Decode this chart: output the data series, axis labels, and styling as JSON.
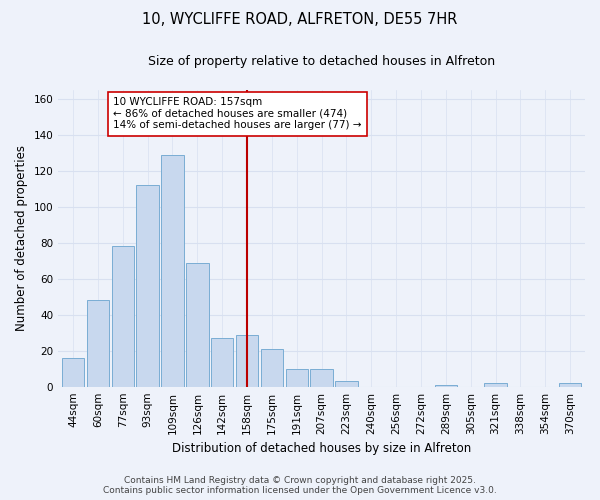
{
  "title": "10, WYCLIFFE ROAD, ALFRETON, DE55 7HR",
  "subtitle": "Size of property relative to detached houses in Alfreton",
  "xlabel": "Distribution of detached houses by size in Alfreton",
  "ylabel": "Number of detached properties",
  "bar_labels": [
    "44sqm",
    "60sqm",
    "77sqm",
    "93sqm",
    "109sqm",
    "126sqm",
    "142sqm",
    "158sqm",
    "175sqm",
    "191sqm",
    "207sqm",
    "223sqm",
    "240sqm",
    "256sqm",
    "272sqm",
    "289sqm",
    "305sqm",
    "321sqm",
    "338sqm",
    "354sqm",
    "370sqm"
  ],
  "bar_heights": [
    16,
    48,
    78,
    112,
    129,
    69,
    27,
    29,
    21,
    10,
    10,
    3,
    0,
    0,
    0,
    1,
    0,
    2,
    0,
    0,
    2
  ],
  "bar_color": "#c8d8ee",
  "bar_edge_color": "#7aadd4",
  "vline_x_index": 7,
  "vline_color": "#bb0000",
  "annotation_title": "10 WYCLIFFE ROAD: 157sqm",
  "annotation_line1": "← 86% of detached houses are smaller (474)",
  "annotation_line2": "14% of semi-detached houses are larger (77) →",
  "annotation_box_facecolor": "#ffffff",
  "annotation_box_edge": "#cc0000",
  "ylim": [
    0,
    165
  ],
  "yticks": [
    0,
    20,
    40,
    60,
    80,
    100,
    120,
    140,
    160
  ],
  "footer_line1": "Contains HM Land Registry data © Crown copyright and database right 2025.",
  "footer_line2": "Contains public sector information licensed under the Open Government Licence v3.0.",
  "bg_color": "#eef2fa",
  "grid_color": "#d8e0f0",
  "title_fontsize": 10.5,
  "subtitle_fontsize": 9,
  "axis_label_fontsize": 8.5,
  "tick_fontsize": 7.5,
  "annotation_fontsize": 7.5,
  "footer_fontsize": 6.5
}
